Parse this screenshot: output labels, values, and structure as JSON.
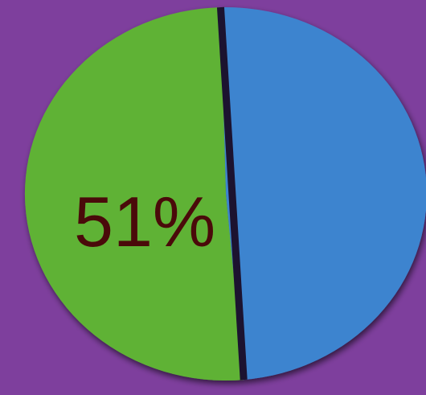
{
  "chart_data": {
    "type": "pie",
    "slices": [
      {
        "value": 49,
        "color": "#3d84cf"
      },
      {
        "value": 51,
        "color": "#5fb236"
      }
    ],
    "data_labels": [
      "51%"
    ],
    "background": "#7e3f9d",
    "label_color": "#4a0a0a",
    "separator_color": "#1c1330"
  }
}
